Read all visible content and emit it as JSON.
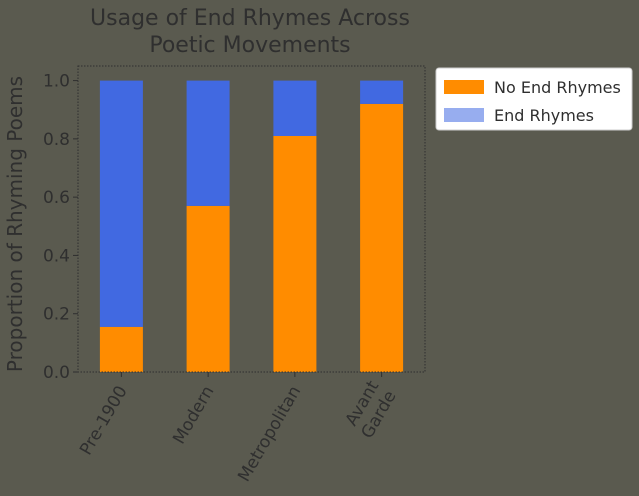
{
  "chart_data": {
    "type": "bar",
    "stacked": true,
    "title_lines": [
      "Usage of End Rhymes Across",
      "Poetic Movements"
    ],
    "xlabel": "",
    "ylabel": "Proportion of Rhyming Poems",
    "categories": [
      [
        "Pre-1900"
      ],
      [
        "Modern"
      ],
      [
        "Metropolitan"
      ],
      [
        "Avant",
        "Garde"
      ]
    ],
    "series": [
      {
        "name": "No End Rhymes",
        "values": [
          0.155,
          0.57,
          0.81,
          0.92
        ],
        "color": "#ff8c00"
      },
      {
        "name": "End Rhymes",
        "values": [
          0.845,
          0.43,
          0.19,
          0.08
        ],
        "color": "#4169e1"
      }
    ],
    "ylim": [
      0,
      1.05
    ],
    "yticks": [
      "0.0",
      "0.2",
      "0.4",
      "0.6",
      "0.8",
      "1.0"
    ],
    "legend_position": "outside-right-top",
    "grid": false,
    "colors": {
      "background": "#5a5a4f",
      "text": "#2f2f2f",
      "legend_bg": "#ffffff"
    }
  }
}
